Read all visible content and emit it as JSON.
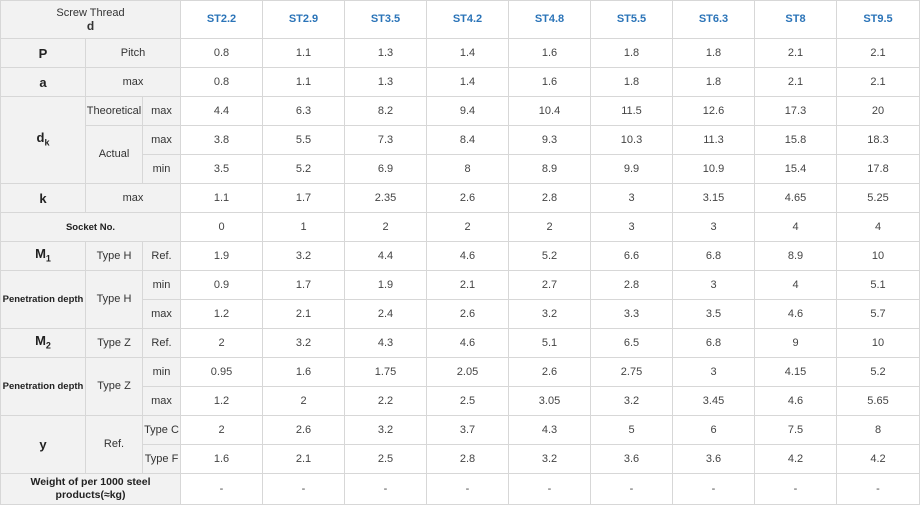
{
  "table": {
    "corner_title": "Screw Thread",
    "corner_symbol": "d",
    "columns": [
      "ST2.2",
      "ST2.9",
      "ST3.5",
      "ST4.2",
      "ST4.8",
      "ST5.5",
      "ST6.3",
      "ST8",
      "ST9.5"
    ],
    "labels": {
      "P": "P",
      "pitch": "Pitch",
      "a": "a",
      "max": "max",
      "min": "min",
      "dk_main": "d",
      "dk_sub": "k",
      "theoretical": "Theoretical",
      "actual": "Actual",
      "k": "k",
      "socket_no": "Socket No.",
      "m1_main": "M",
      "m1_sub": "1",
      "m2_main": "M",
      "m2_sub": "2",
      "type_h": "Type H",
      "type_z": "Type Z",
      "ref": "Ref.",
      "penetration_depth": "Penetration depth",
      "y": "y",
      "type_c": "Type C",
      "type_f": "Type F",
      "weight": "Weight of per 1000 steel products(≈kg)"
    },
    "rows": {
      "pitch": [
        "0.8",
        "1.1",
        "1.3",
        "1.4",
        "1.6",
        "1.8",
        "1.8",
        "2.1",
        "2.1"
      ],
      "a_max": [
        "0.8",
        "1.1",
        "1.3",
        "1.4",
        "1.6",
        "1.8",
        "1.8",
        "2.1",
        "2.1"
      ],
      "dk_theoretical_max": [
        "4.4",
        "6.3",
        "8.2",
        "9.4",
        "10.4",
        "11.5",
        "12.6",
        "17.3",
        "20"
      ],
      "dk_actual_max": [
        "3.8",
        "5.5",
        "7.3",
        "8.4",
        "9.3",
        "10.3",
        "11.3",
        "15.8",
        "18.3"
      ],
      "dk_actual_min": [
        "3.5",
        "5.2",
        "6.9",
        "8",
        "8.9",
        "9.9",
        "10.9",
        "15.4",
        "17.8"
      ],
      "k_max": [
        "1.1",
        "1.7",
        "2.35",
        "2.6",
        "2.8",
        "3",
        "3.15",
        "4.65",
        "5.25"
      ],
      "socket_no": [
        "0",
        "1",
        "2",
        "2",
        "2",
        "3",
        "3",
        "4",
        "4"
      ],
      "m1_type_h_ref": [
        "1.9",
        "3.2",
        "4.4",
        "4.6",
        "5.2",
        "6.6",
        "6.8",
        "8.9",
        "10"
      ],
      "pen_h_min": [
        "0.9",
        "1.7",
        "1.9",
        "2.1",
        "2.7",
        "2.8",
        "3",
        "4",
        "5.1"
      ],
      "pen_h_max": [
        "1.2",
        "2.1",
        "2.4",
        "2.6",
        "3.2",
        "3.3",
        "3.5",
        "4.6",
        "5.7"
      ],
      "m2_type_z_ref": [
        "2",
        "3.2",
        "4.3",
        "4.6",
        "5.1",
        "6.5",
        "6.8",
        "9",
        "10"
      ],
      "pen_z_min": [
        "0.95",
        "1.6",
        "1.75",
        "2.05",
        "2.6",
        "2.75",
        "3",
        "4.15",
        "5.2"
      ],
      "pen_z_max": [
        "1.2",
        "2",
        "2.2",
        "2.5",
        "3.05",
        "3.2",
        "3.45",
        "4.6",
        "5.65"
      ],
      "y_type_c": [
        "2",
        "2.6",
        "3.2",
        "3.7",
        "4.3",
        "5",
        "6",
        "7.5",
        "8"
      ],
      "y_type_f": [
        "1.6",
        "2.1",
        "2.5",
        "2.8",
        "3.2",
        "3.6",
        "3.6",
        "4.2",
        "4.2"
      ],
      "weight": [
        "-",
        "-",
        "-",
        "-",
        "-",
        "-",
        "-",
        "-",
        "-"
      ]
    }
  }
}
